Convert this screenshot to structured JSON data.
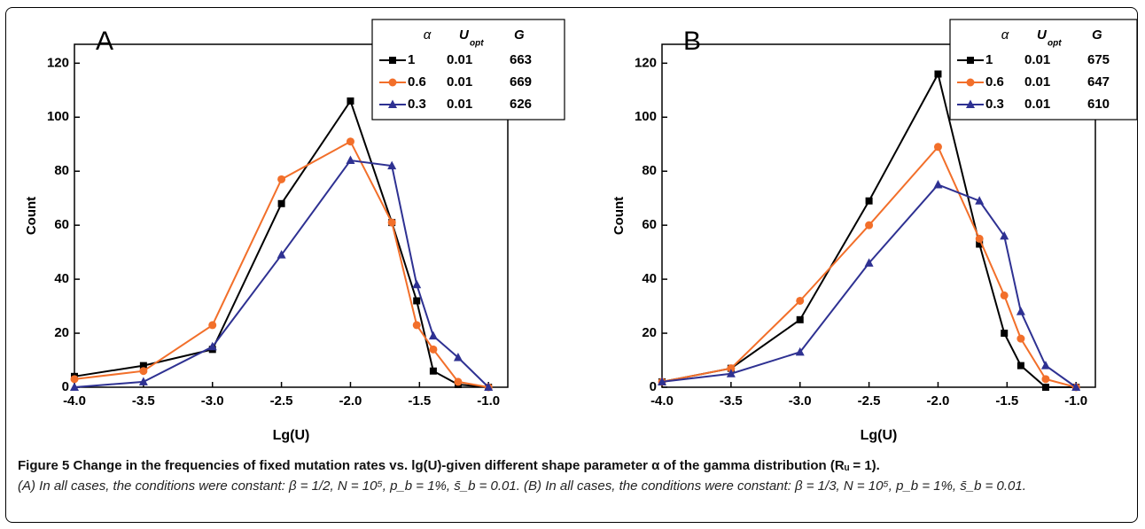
{
  "chart_data": [
    {
      "type": "line",
      "panel": "A",
      "x_label": "Lg(U)",
      "y_label": "Count",
      "x": [
        -4.0,
        -3.5,
        -3.0,
        -2.5,
        -2.0,
        -1.7,
        -1.52,
        -1.4,
        -1.22,
        -1.0
      ],
      "xlim": [
        -4.0,
        -0.86
      ],
      "ylim": [
        0,
        127
      ],
      "xticks": [
        {
          "value": -4,
          "label": "-4.0"
        },
        {
          "value": -3.5,
          "label": "-3.5"
        },
        {
          "value": -3,
          "label": "-3.0"
        },
        {
          "value": -2.5,
          "label": "-2.5"
        },
        {
          "value": -2,
          "label": "-2.0"
        },
        {
          "value": -1.5,
          "label": "-1.5"
        },
        {
          "value": -1,
          "label": "-1.0"
        }
      ],
      "yticks": [
        0,
        20,
        40,
        60,
        80,
        100,
        120
      ],
      "legend_header": {
        "alpha": "α",
        "u": "U",
        "u_sub": "opt",
        "g": "G"
      },
      "series": [
        {
          "name": "1",
          "u_opt": 0.01,
          "G": 663,
          "color": "#000000",
          "marker": "square",
          "values": [
            4,
            8,
            14,
            68,
            106,
            61,
            32,
            6,
            1,
            0
          ]
        },
        {
          "name": "0.6",
          "u_opt": 0.01,
          "G": 669,
          "color": "#f26f2a",
          "marker": "circle",
          "values": [
            3,
            6,
            23,
            77,
            91,
            61,
            23,
            14,
            2,
            0
          ]
        },
        {
          "name": "0.3",
          "u_opt": 0.01,
          "G": 626,
          "color": "#2e3192",
          "marker": "triangle",
          "values": [
            0,
            2,
            15,
            49,
            84,
            82,
            38,
            19,
            11,
            0
          ]
        }
      ]
    },
    {
      "type": "line",
      "panel": "B",
      "x_label": "Lg(U)",
      "y_label": "Count",
      "x": [
        -4.0,
        -3.5,
        -3.0,
        -2.5,
        -2.0,
        -1.7,
        -1.52,
        -1.4,
        -1.22,
        -1.0
      ],
      "xlim": [
        -4.0,
        -0.86
      ],
      "ylim": [
        0,
        127
      ],
      "xticks": [
        {
          "value": -4,
          "label": "-4.0"
        },
        {
          "value": -3.5,
          "label": "-3.5"
        },
        {
          "value": -3,
          "label": "-3.0"
        },
        {
          "value": -2.5,
          "label": "-2.5"
        },
        {
          "value": -2,
          "label": "-2.0"
        },
        {
          "value": -1.5,
          "label": "-1.5"
        },
        {
          "value": -1,
          "label": "-1.0"
        }
      ],
      "yticks": [
        0,
        20,
        40,
        60,
        80,
        100,
        120
      ],
      "legend_header": {
        "alpha": "α",
        "u": "U",
        "u_sub": "opt",
        "g": "G"
      },
      "series": [
        {
          "name": "1",
          "u_opt": 0.01,
          "G": 675,
          "color": "#000000",
          "marker": "square",
          "values": [
            2,
            7,
            25,
            69,
            116,
            53,
            20,
            8,
            0,
            0
          ]
        },
        {
          "name": "0.6",
          "u_opt": 0.01,
          "G": 647,
          "color": "#f26f2a",
          "marker": "circle",
          "values": [
            2,
            7,
            32,
            60,
            89,
            55,
            34,
            18,
            3,
            0
          ]
        },
        {
          "name": "0.3",
          "u_opt": 0.01,
          "G": 610,
          "color": "#2e3192",
          "marker": "triangle",
          "values": [
            2,
            5,
            13,
            46,
            75,
            69,
            56,
            28,
            8,
            0
          ]
        }
      ]
    }
  ],
  "caption": {
    "label": "Figure 5",
    "heading": "Change in the frequencies of fixed mutation rates vs. lg(U)-given different shape parameter α of the gamma distribution (Rᵤ = 1).",
    "text": "(A) In all cases, the conditions were constant: β = 1/2, N = 10⁵, p_b = 1%, s̄_b = 0.01. (B) In all cases, the conditions were constant: β = 1/3, N = 10⁵, p_b = 1%, s̄_b = 0.01."
  }
}
